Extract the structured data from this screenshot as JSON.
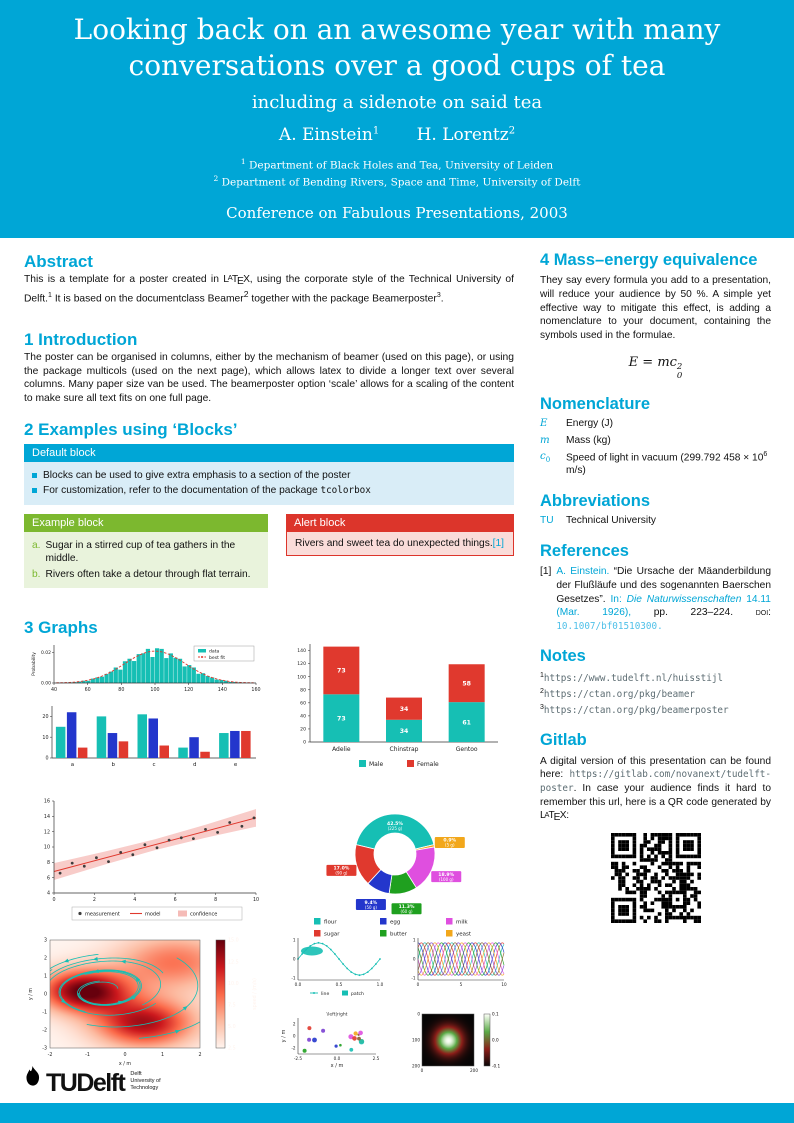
{
  "colors": {
    "accent": "#00A6D6",
    "teal": "#16bfb4",
    "red": "#e0392e",
    "blue": "#2336cc",
    "green": "#1fa01f",
    "magenta": "#df4fdf",
    "orange": "#f2a71b",
    "green_block": "#7cb82f",
    "alert_red": "#dc352b",
    "pink_band": "#f5bbb7"
  },
  "header": {
    "title": "Looking back on an awesome year with many conversations over a good cups of tea",
    "subtitle": "including a sidenote on said tea",
    "authors": [
      {
        "name": "A. Einstein",
        "sup": "1"
      },
      {
        "name": "H. Lorentz",
        "sup": "2"
      }
    ],
    "affiliations": [
      {
        "sup": "1",
        "text": "Department of Black Holes and Tea, University of Leiden"
      },
      {
        "sup": "2",
        "text": "Department of Bending Rivers, Space and Time, University of Delft"
      }
    ],
    "conference": "Conference on Fabulous Presentations, 2003"
  },
  "abstract": {
    "heading": "Abstract",
    "p1": "This is a template for a poster created in ",
    "latex": "LaTeX",
    "p2": ", using the corporate style of the Technical University of Delft.",
    "fn1": "1",
    "p3": " It is based on the documentclass Beamer",
    "fn2": "2",
    "p4": " together with the package Beamerposter",
    "fn3": "3",
    "p5": "."
  },
  "introduction": {
    "heading": "1 Introduction",
    "text": "The poster can be organised in columns, either by the mechanism of beamer (used on this page), or using the package multicols (used on the next page), which allows latex to divide a longer text over several columns. Many paper size van be used. The beamerposter option ‘scale’ allows for a scaling of the content to make sure all text fits on one full page."
  },
  "blocks": {
    "heading": "2 Examples using ‘Blocks’",
    "default_block": {
      "title": "Default block",
      "item1": "Blocks can be used to give extra emphasis to a section of the poster",
      "item2_pre": "For customization, refer to the documentation of the package ",
      "item2_code": "tcolorbox"
    },
    "example_block": {
      "title": "Example block",
      "items": [
        {
          "marker": "a.",
          "text": "Sugar in a stirred cup of tea gathers in the middle."
        },
        {
          "marker": "b.",
          "text": "Rivers often take a detour through flat terrain."
        }
      ]
    },
    "alert_block": {
      "title": "Alert block",
      "text": "Rivers and sweet tea do unexpected things.",
      "cite": "[1]"
    }
  },
  "graphs": {
    "heading": "3 Graphs"
  },
  "mass_energy": {
    "heading": "4 Mass–energy equivalence",
    "text": "They say every formula you add to a presentation, will reduce your audience by 50 %. A simple yet effective way to mitigate this effect, is adding a nomenclature to your document, containing the symbols used in the formulae.",
    "formula": {
      "lhs": "E",
      "rel": " = ",
      "base": "mc",
      "sup": "2",
      "sub": "0"
    }
  },
  "nomenclature": {
    "heading": "Nomenclature",
    "rows": [
      {
        "sym": "E",
        "desc": "Energy (J)"
      },
      {
        "sym": "m",
        "desc": "Mass (kg)"
      },
      {
        "sym": "c",
        "sym_sub": "0",
        "desc_pre": "Speed of light in vacuum (299.792 458 × 10",
        "desc_sup": "6",
        "desc_post": " m/s)"
      }
    ]
  },
  "abbreviations": {
    "heading": "Abbreviations",
    "rows": [
      {
        "abbr": "TU",
        "desc": "Technical University"
      }
    ]
  },
  "references": {
    "heading": "References",
    "index": "[1]",
    "author": "A. Einstein.",
    "title": "“Die Ursache der Mäanderbildung der Flußläufe und des sogenannten Baerschen Gesetzes”. ",
    "in_label": "In: ",
    "journal": "Die Naturwissenschaften",
    "vol": " 14.11 (Mar. 1926),",
    "pages": " pp. 223–224. ",
    "doi_label": "doi: ",
    "doi": "10.1007/bf01510300."
  },
  "notes": {
    "heading": "Notes",
    "items": [
      {
        "sup": "1",
        "url": "https://www.tudelft.nl/huisstijl"
      },
      {
        "sup": "2",
        "url": "https://ctan.org/pkg/beamer"
      },
      {
        "sup": "3",
        "url": "https://ctan.org/pkg/beamerposter"
      }
    ]
  },
  "gitlab": {
    "heading": "Gitlab",
    "p1": "A digital version of this presentation can be found here: ",
    "url": "https://gitlab.com/novanext/tudelft-poster",
    "p2": ". In case your audience finds it hard to remember this url, here is a QR code generated by ",
    "latex": "LaTeX",
    "p3": ":"
  },
  "logo": {
    "tu": "TU",
    "delft": "Delft",
    "tagline1": "Delft",
    "tagline2": "University of",
    "tagline3": "Technology"
  },
  "chart_data": [
    {
      "id": "histogram_fit",
      "type": "bar",
      "ylabel": "Probability",
      "xlim": [
        40,
        160
      ],
      "ylim": [
        0,
        0.025
      ],
      "xticks": [
        40,
        60,
        80,
        100,
        120,
        140,
        160
      ],
      "yticks": [
        "0.00",
        "0.02"
      ],
      "distribution": {
        "mean": 100,
        "sd": 18,
        "peak": 0.021,
        "bins": 44
      },
      "legend": [
        {
          "label": "data",
          "color": "teal"
        },
        {
          "label": "best fit",
          "color": "red"
        }
      ]
    },
    {
      "id": "grouped_bar",
      "type": "bar",
      "categories": [
        "a",
        "b",
        "c",
        "d",
        "e"
      ],
      "series": [
        {
          "name": "series-1",
          "color": "teal",
          "values": [
            15,
            20,
            21,
            5,
            12
          ]
        },
        {
          "name": "series-2",
          "color": "blue",
          "values": [
            22,
            12,
            19,
            10,
            13
          ]
        },
        {
          "name": "series-3",
          "color": "red",
          "values": [
            5,
            8,
            6,
            3,
            13
          ]
        }
      ],
      "ylim": [
        0,
        25
      ],
      "yticks": [
        0,
        10,
        20
      ]
    },
    {
      "id": "penguins_stacked",
      "type": "bar",
      "categories": [
        "Adelie",
        "Chinstrap",
        "Gentoo"
      ],
      "series": [
        {
          "name": "Male",
          "color": "teal",
          "values": [
            73,
            34,
            61
          ]
        },
        {
          "name": "Female",
          "color": "red",
          "values": [
            73,
            34,
            58
          ]
        }
      ],
      "ylim": [
        0,
        150
      ],
      "yticks": [
        0,
        20,
        40,
        60,
        80,
        100,
        120,
        140
      ],
      "legend_position": "bottom"
    },
    {
      "id": "regression",
      "type": "scatter",
      "xlim": [
        0,
        10
      ],
      "ylim": [
        4,
        16
      ],
      "xticks": [
        0,
        2,
        4,
        6,
        8,
        10
      ],
      "yticks": [
        4,
        6,
        8,
        10,
        12,
        14,
        16
      ],
      "x": [
        0.3,
        0.9,
        1.5,
        2.1,
        2.7,
        3.3,
        3.9,
        4.5,
        5.1,
        5.7,
        6.3,
        6.9,
        7.5,
        8.1,
        8.7,
        9.3,
        9.9
      ],
      "y": [
        6.6,
        7.9,
        7.5,
        8.6,
        8.1,
        9.3,
        9.0,
        10.3,
        9.9,
        10.9,
        11.2,
        11.1,
        12.3,
        11.9,
        13.2,
        12.7,
        13.8
      ],
      "model": {
        "intercept": 6.8,
        "slope": 0.7
      },
      "confidence_x": [
        0,
        2.5,
        5,
        7.5,
        10
      ],
      "confidence_halfwidth": [
        1.1,
        0.85,
        0.7,
        0.85,
        1.15
      ],
      "legend": [
        {
          "label": "measurement"
        },
        {
          "label": "model"
        },
        {
          "label": "confidence"
        }
      ]
    },
    {
      "id": "ingredients_donut",
      "type": "pie",
      "unit": "g",
      "slices": [
        {
          "label": "flour",
          "grams": 225,
          "pct": "42.5%"
        },
        {
          "label": "yeast",
          "grams": 5,
          "pct": "0.9%"
        },
        {
          "label": "milk",
          "grams": 100,
          "pct": "18.9%"
        },
        {
          "label": "butter",
          "grams": 60,
          "pct": "11.3%"
        },
        {
          "label": "egg",
          "grams": 50,
          "pct": "9.4%"
        },
        {
          "label": "sugar",
          "grams": 90,
          "pct": "17.0%"
        }
      ],
      "colors": {
        "flour": "teal",
        "sugar": "red",
        "egg": "blue",
        "butter": "green",
        "milk": "magenta",
        "yeast": "orange"
      },
      "legend_order": [
        "flour",
        "egg",
        "milk",
        "sugar",
        "butter",
        "yeast"
      ]
    },
    {
      "id": "streamplot",
      "type": "heatmap",
      "xlabel": "x / m",
      "ylabel": "y / m",
      "xlim": [
        -2,
        2
      ],
      "ylim": [
        -3,
        3
      ],
      "xticks": [
        -2,
        -1,
        0,
        1,
        2
      ],
      "yticks": [
        -3,
        -2,
        -1,
        0,
        1,
        2,
        3
      ],
      "colorbar": {
        "label": "speed / (m/s)",
        "ticks": [
          2.5,
          5.0,
          7.5,
          10.0,
          12.5,
          15.0
        ]
      }
    },
    {
      "id": "mini_line_patch",
      "type": "line",
      "xticks": [
        "0.0",
        "0.5",
        "1.0"
      ],
      "yticks": [
        -1,
        0,
        1
      ],
      "legend": [
        {
          "label": "line"
        },
        {
          "label": "patch"
        }
      ]
    },
    {
      "id": "mini_multiline",
      "type": "line",
      "xticks": [
        0,
        5,
        10
      ],
      "yticks": [
        -1,
        0,
        1
      ],
      "series_count": 8,
      "palette": [
        "teal",
        "red",
        "blue",
        "green",
        "magenta",
        "orange",
        "#7a3fd1",
        "#8a5a2b"
      ]
    },
    {
      "id": "mini_scatter",
      "type": "scatter",
      "xlabel": "x / m",
      "ylabel": "y / m",
      "annotation": "\\left|right",
      "xticks": [
        "-2.5",
        "0.0",
        "2.5"
      ],
      "yticks": [
        -2,
        0,
        2
      ]
    },
    {
      "id": "mini_image",
      "type": "heatmap",
      "xticks": [
        0,
        200
      ],
      "yticks": [
        0,
        100,
        200
      ],
      "colorbar": {
        "ticks": [
          "0.1",
          "0.0",
          "-0.1"
        ]
      }
    }
  ]
}
